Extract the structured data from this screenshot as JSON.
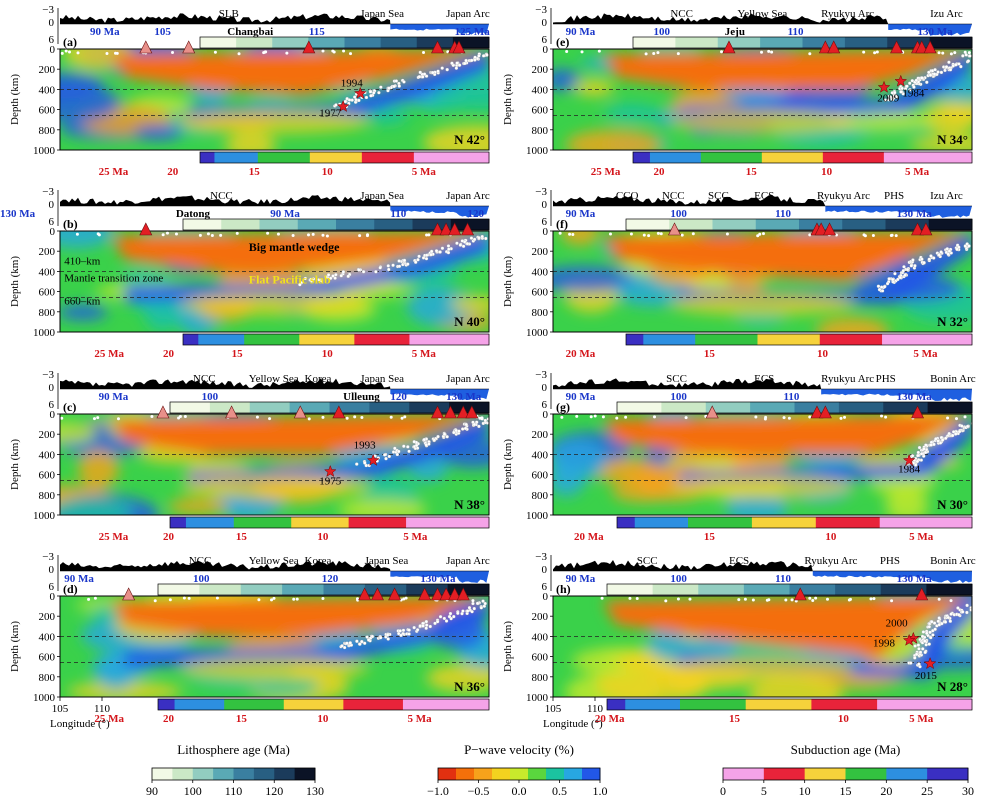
{
  "axes": {
    "depth_label": "Depth (km)",
    "longitude_label": "Longitude (°)",
    "depth_ticks": [
      "0",
      "200",
      "400",
      "600",
      "800",
      "1000"
    ],
    "topo_ticks": [
      "−3",
      "0",
      "6"
    ],
    "longitude_ticks_left": [
      "105",
      "110"
    ],
    "longitude_ticks_right": [
      "105",
      "110"
    ]
  },
  "panels": [
    {
      "id": "a",
      "label": "(a)",
      "latitude": "N 42°",
      "regions": [
        "SLB",
        "Japan Sea",
        "Japan Arc"
      ],
      "lith_labels": [
        "90 Ma",
        "105",
        "Changbai",
        "115",
        "125 Ma"
      ],
      "sub_labels": [
        "25 Ma",
        "20",
        "15",
        "10",
        "5 Ma"
      ],
      "events": [
        "1994",
        "1977"
      ]
    },
    {
      "id": "b",
      "label": "(b)",
      "latitude": "N 40°",
      "regions": [
        "NCC",
        "Japan Sea",
        "Japan Arc"
      ],
      "lith_labels": [
        "Datong",
        "90 Ma",
        "110",
        "120",
        "130 Ma"
      ],
      "sub_labels": [
        "25 Ma",
        "20",
        "15",
        "10",
        "5 Ma"
      ],
      "annotations": [
        "Big mantle wedge",
        "Flat Pacific slab",
        "410–km",
        "Mantle transition zone",
        "660–km"
      ],
      "events": []
    },
    {
      "id": "c",
      "label": "(c)",
      "latitude": "N 38°",
      "regions": [
        "NCC",
        "Yellow Sea",
        "Korea",
        "Japan Sea",
        "Japan Arc"
      ],
      "lith_labels": [
        "90 Ma",
        "100",
        "Ulleung",
        "120",
        "130 Ma"
      ],
      "sub_labels": [
        "25 Ma",
        "20",
        "15",
        "10",
        "5 Ma"
      ],
      "events": [
        "1993",
        "1975"
      ]
    },
    {
      "id": "d",
      "label": "(d)",
      "latitude": "N 36°",
      "regions": [
        "NCC",
        "Yellow Sea",
        "Korea",
        "Japan Sea",
        "Japan Arc"
      ],
      "lith_labels": [
        "90 Ma",
        "100",
        "120",
        "130 Ma"
      ],
      "sub_labels": [
        "25 Ma",
        "20",
        "15",
        "10",
        "5 Ma"
      ],
      "events": []
    },
    {
      "id": "e",
      "label": "(e)",
      "latitude": "N 34°",
      "regions": [
        "NCC",
        "Yellow Sea",
        "Ryukyu Arc",
        "Izu Arc"
      ],
      "lith_labels": [
        "90 Ma",
        "100",
        "Jeju",
        "110",
        "130 Ma"
      ],
      "sub_labels": [
        "25 Ma",
        "20",
        "15",
        "10",
        "5 Ma"
      ],
      "events": [
        "1984",
        "2009"
      ]
    },
    {
      "id": "f",
      "label": "(f)",
      "latitude": "N 32°",
      "regions": [
        "CCO",
        "NCC",
        "SCC",
        "ECS",
        "Ryukyu Arc",
        "PHS",
        "Izu Arc"
      ],
      "lith_labels": [
        "90 Ma",
        "100",
        "110",
        "130 Ma"
      ],
      "sub_labels": [
        "20 Ma",
        "15",
        "10",
        "5 Ma"
      ],
      "events": []
    },
    {
      "id": "g",
      "label": "(g)",
      "latitude": "N 30°",
      "regions": [
        "SCC",
        "ECS",
        "Ryukyu Arc",
        "PHS",
        "Bonin Arc"
      ],
      "lith_labels": [
        "90 Ma",
        "100",
        "110",
        "130 Ma"
      ],
      "sub_labels": [
        "20 Ma",
        "15",
        "10",
        "5 Ma"
      ],
      "events": [
        "1984"
      ]
    },
    {
      "id": "h",
      "label": "(h)",
      "latitude": "N 28°",
      "regions": [
        "SCC",
        "ECS",
        "Ryukyu Arc",
        "PHS",
        "Bonin Arc"
      ],
      "lith_labels": [
        "90 Ma",
        "100",
        "110",
        "130 Ma"
      ],
      "sub_labels": [
        "20 Ma",
        "15",
        "10",
        "5 Ma"
      ],
      "events": [
        "2000",
        "1998",
        "2015"
      ]
    }
  ],
  "legends": {
    "lithosphere": {
      "title": "Lithosphere age (Ma)",
      "ticks": [
        "90",
        "100",
        "110",
        "120",
        "130"
      ],
      "colors": [
        "#f2f9e6",
        "#cbe8c6",
        "#92cdc0",
        "#5aa9b5",
        "#3a7fa0",
        "#285f82",
        "#1b3b5b",
        "#0b1326"
      ]
    },
    "velocity": {
      "title": "P−wave velocity (%)",
      "ticks": [
        "−1.0",
        "−0.5",
        "0.0",
        "0.5",
        "1.0"
      ],
      "colors": [
        "#e23010",
        "#f5700a",
        "#f7a21b",
        "#f3d21f",
        "#c8ea2c",
        "#5ad63e",
        "#1bc3a0",
        "#27a7e2",
        "#2257e8"
      ]
    },
    "subduction": {
      "title": "Subduction age (Ma)",
      "ticks": [
        "0",
        "5",
        "10",
        "15",
        "20",
        "25",
        "30"
      ],
      "colors": [
        "#f5a3e8",
        "#e8233a",
        "#f6d23b",
        "#33c240",
        "#2d8fe0",
        "#3a2fc2"
      ]
    }
  },
  "colors": {
    "topography": "#000000",
    "ocean": "#1f5fe0",
    "lith_label": "#1a36c9",
    "sub_label": "#d4151b",
    "volcano_intraplate": "#e8908a",
    "volcano_arc": "#e31e24",
    "earthquake": "#ffffff",
    "deep_event": "#e31e24",
    "fast_anomaly": "#2357e6",
    "slow_anomaly": "#f46e0f"
  }
}
